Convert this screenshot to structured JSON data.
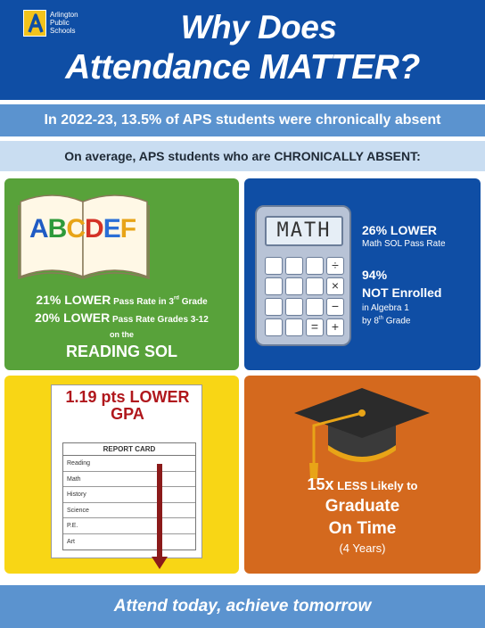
{
  "header": {
    "logo_lines": [
      "Arlington",
      "Public",
      "Schools"
    ],
    "title_line1": "Why Does",
    "title_line2": "Attendance MATTER?"
  },
  "stat_band": "In 2022-23, 13.5% of APS students were chronically absent",
  "subheading": "On average, APS students who are CHRONICALLY ABSENT:",
  "reading": {
    "book_letters": [
      "A",
      "B",
      "C",
      "D",
      "E",
      "F"
    ],
    "line1_big": "21% LOWER",
    "line1_small": " Pass Rate in 3",
    "line1_sup": "rd",
    "line1_end": " Grade",
    "line2_big": "20% LOWER",
    "line2_small": " Pass Rate Grades 3-12",
    "on_the": "on the",
    "sol": "READING SOL"
  },
  "math": {
    "screen": "MATH",
    "stat1_big": "26% LOWER",
    "stat1_small": "Math SOL Pass Rate",
    "stat2_pct": "94%",
    "stat2_big": "NOT Enrolled",
    "stat2_small1": "in Algebra 1",
    "stat2_small2_pre": "by 8",
    "stat2_small2_sup": "th",
    "stat2_small2_post": " Grade",
    "keys": [
      "÷",
      "×",
      "−",
      "=",
      "+"
    ]
  },
  "gpa": {
    "line1": "1.19 pts LOWER",
    "line2": "GPA",
    "card_title": "REPORT CARD",
    "subjects": [
      "Reading",
      "Math",
      "History",
      "Science",
      "P.E.",
      "Art"
    ]
  },
  "graduate": {
    "big": "15x",
    "small": " LESS Likely to",
    "line2": "Graduate",
    "line3": "On Time",
    "line4": "(4 Years)"
  },
  "footer": "Attend today, achieve tomorrow",
  "colors": {
    "navy": "#0f4ea5",
    "light_blue": "#5b93cf",
    "pale_blue": "#c9ddf1",
    "green": "#58a23a",
    "yellow": "#f8d615",
    "orange": "#d4691e",
    "red": "#b0171c"
  }
}
